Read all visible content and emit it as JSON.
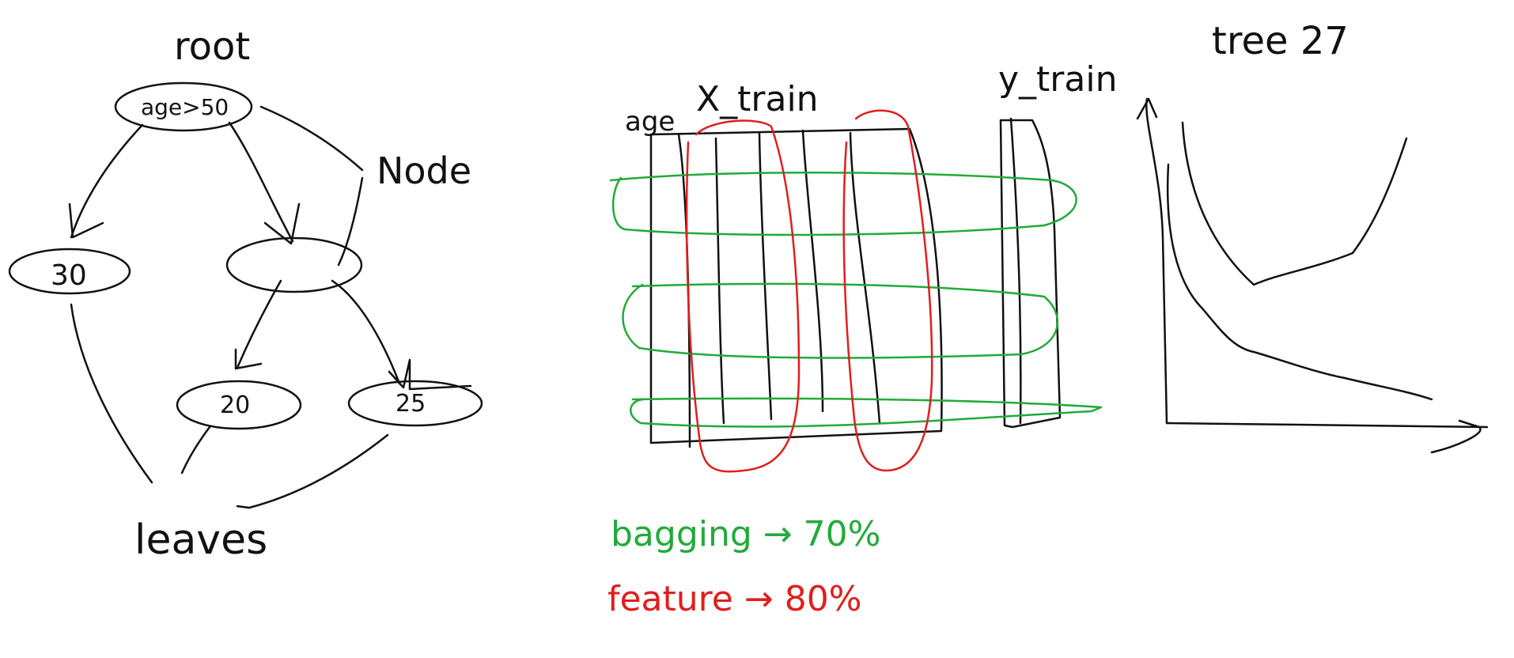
{
  "colors": {
    "ink": "#111111",
    "bagging": "#22aa3a",
    "feature": "#e01e1e",
    "background": "#ffffff"
  },
  "tree": {
    "title": "root",
    "root_split": "age>50",
    "node_label": "Node",
    "leaf_left": "30",
    "leaf_mid": "20",
    "leaf_right": "25",
    "leaves_label": "leaves"
  },
  "matrix": {
    "column_label": "age",
    "x_label": "X_train",
    "y_label": "y_train"
  },
  "notes": {
    "bagging": "bagging → 70%",
    "feature": "feature → 80%"
  },
  "chart": {
    "label": "tree 27"
  }
}
